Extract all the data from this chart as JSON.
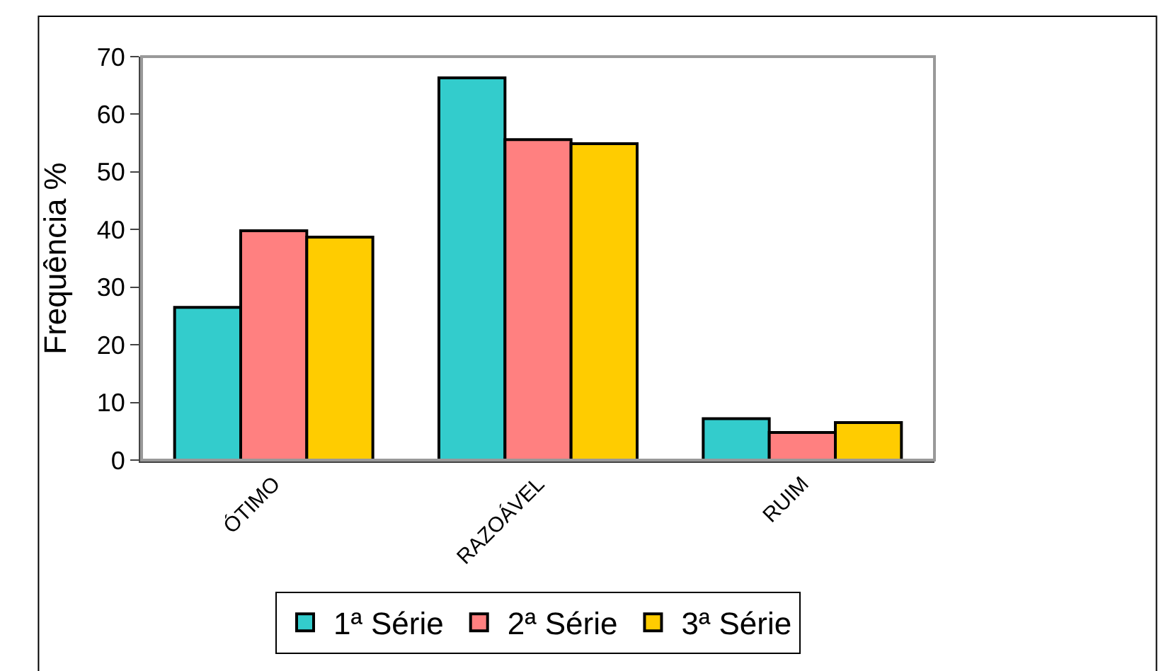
{
  "chart_data": {
    "type": "bar",
    "ylabel": "Frequência %",
    "categories": [
      "ÓTIMO",
      "RAZOÁVEL",
      "RUIM"
    ],
    "series": [
      {
        "name": "1ª Série",
        "color": "#33cccc",
        "values": [
          26.5,
          66.3,
          7.2
        ]
      },
      {
        "name": "2ª Série",
        "color": "#ff8080",
        "values": [
          39.8,
          55.6,
          4.8
        ]
      },
      {
        "name": "3ª Série",
        "color": "#ffcc00",
        "values": [
          38.7,
          54.9,
          6.5
        ]
      }
    ],
    "ylim": [
      0,
      70
    ],
    "yticks": [
      0,
      10,
      20,
      30,
      40,
      50,
      60,
      70
    ],
    "legend": "bottom"
  }
}
